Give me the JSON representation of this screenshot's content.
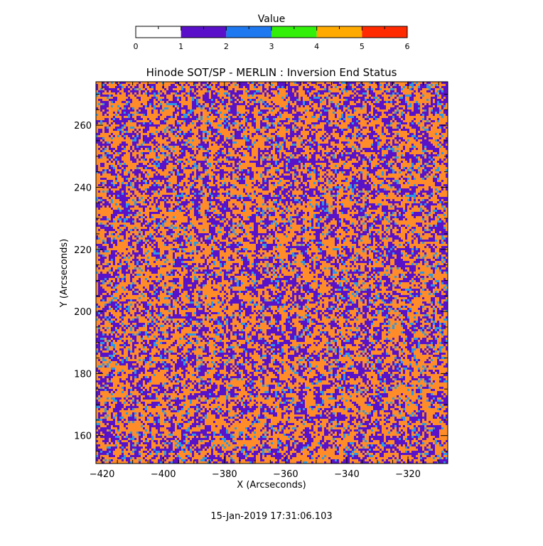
{
  "colorbar": {
    "title": "Value",
    "ticks": [
      "0",
      "1",
      "2",
      "3",
      "4",
      "5",
      "6"
    ],
    "colors": [
      "#ffffff",
      "#5a10c8",
      "#1e78f0",
      "#32f00a",
      "#ffaa00",
      "#ff2a00"
    ]
  },
  "chart_data": {
    "type": "heatmap",
    "title": "Hinode SOT/SP - MERLIN : Inversion End Status",
    "xlabel": "X (Arcseconds)",
    "ylabel": "Y (Arcseconds)",
    "xlim": [
      -422,
      -307
    ],
    "ylim": [
      151,
      274
    ],
    "x_ticks": [
      -420,
      -400,
      -380,
      -360,
      -340,
      -320
    ],
    "x_tick_labels": [
      "−420",
      "−400",
      "−380",
      "−360",
      "−340",
      "−320"
    ],
    "y_ticks": [
      160,
      180,
      200,
      220,
      240,
      260
    ],
    "y_tick_labels": [
      "160",
      "180",
      "200",
      "220",
      "240",
      "260"
    ],
    "value_range": [
      0,
      6
    ],
    "status_values": [
      1,
      2,
      4
    ],
    "status_colors": {
      "1": "#5a12c8",
      "2": "#2a9ae6",
      "4": "#ff8c28"
    },
    "grid": false,
    "legend": "colorbar-top"
  },
  "footer": {
    "timestamp": "15-Jan-2019 17:31:06.103"
  }
}
